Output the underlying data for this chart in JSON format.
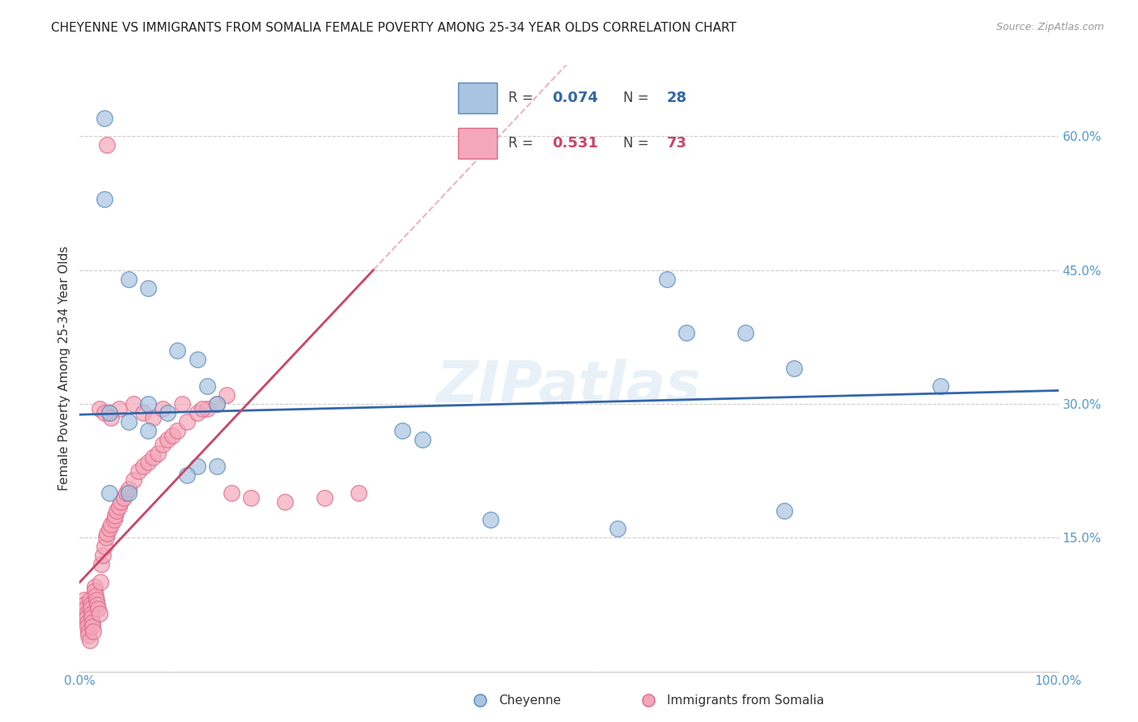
{
  "title": "CHEYENNE VS IMMIGRANTS FROM SOMALIA FEMALE POVERTY AMONG 25-34 YEAR OLDS CORRELATION CHART",
  "source": "Source: ZipAtlas.com",
  "ylabel": "Female Poverty Among 25-34 Year Olds",
  "xlim": [
    0,
    1.0
  ],
  "ylim": [
    0,
    0.68
  ],
  "xticks": [
    0.0,
    0.1,
    0.2,
    0.3,
    0.4,
    0.5,
    0.6,
    0.7,
    0.8,
    0.9,
    1.0
  ],
  "xticklabels": [
    "0.0%",
    "",
    "",
    "",
    "",
    "",
    "",
    "",
    "",
    "",
    "100.0%"
  ],
  "yticks": [
    0.0,
    0.15,
    0.3,
    0.45,
    0.6
  ],
  "yticklabels": [
    "",
    "15.0%",
    "30.0%",
    "45.0%",
    "60.0%"
  ],
  "cheyenne_color": "#a8c4e0",
  "somalia_color": "#f4a7b9",
  "cheyenne_edge": "#5588bb",
  "somalia_edge": "#dd6688",
  "trend_cheyenne_color": "#3366aa",
  "trend_somalia_color": "#cc4466",
  "legend_R_cheyenne": "0.074",
  "legend_N_cheyenne": "28",
  "legend_R_somalia": "0.531",
  "legend_N_somalia": "73",
  "watermark": "ZIPatlas",
  "cheyenne_x": [
    0.025,
    0.025,
    0.05,
    0.07,
    0.1,
    0.12,
    0.13,
    0.14,
    0.33,
    0.6,
    0.68,
    0.73,
    0.88,
    0.03,
    0.05,
    0.07,
    0.09,
    0.12,
    0.03,
    0.05,
    0.07,
    0.11,
    0.14,
    0.62,
    0.72,
    0.35,
    0.42,
    0.55
  ],
  "cheyenne_y": [
    0.62,
    0.53,
    0.44,
    0.43,
    0.36,
    0.35,
    0.32,
    0.3,
    0.27,
    0.44,
    0.38,
    0.34,
    0.32,
    0.29,
    0.28,
    0.27,
    0.29,
    0.23,
    0.2,
    0.2,
    0.3,
    0.22,
    0.23,
    0.38,
    0.18,
    0.26,
    0.17,
    0.16
  ],
  "somalia_x": [
    0.005,
    0.005,
    0.006,
    0.007,
    0.007,
    0.008,
    0.008,
    0.009,
    0.009,
    0.01,
    0.01,
    0.011,
    0.011,
    0.012,
    0.012,
    0.013,
    0.013,
    0.014,
    0.015,
    0.015,
    0.016,
    0.017,
    0.018,
    0.019,
    0.02,
    0.021,
    0.022,
    0.024,
    0.025,
    0.027,
    0.028,
    0.03,
    0.032,
    0.035,
    0.036,
    0.038,
    0.04,
    0.042,
    0.045,
    0.048,
    0.05,
    0.055,
    0.06,
    0.065,
    0.07,
    0.075,
    0.08,
    0.085,
    0.09,
    0.095,
    0.1,
    0.11,
    0.12,
    0.13,
    0.14,
    0.15,
    0.155,
    0.175,
    0.21,
    0.25,
    0.285,
    0.03,
    0.04,
    0.055,
    0.065,
    0.075,
    0.085,
    0.105,
    0.125,
    0.02,
    0.025,
    0.032,
    0.028
  ],
  "somalia_y": [
    0.08,
    0.075,
    0.07,
    0.065,
    0.06,
    0.055,
    0.05,
    0.045,
    0.04,
    0.035,
    0.08,
    0.075,
    0.07,
    0.065,
    0.06,
    0.055,
    0.05,
    0.045,
    0.095,
    0.09,
    0.085,
    0.08,
    0.075,
    0.07,
    0.065,
    0.1,
    0.12,
    0.13,
    0.14,
    0.15,
    0.155,
    0.16,
    0.165,
    0.17,
    0.175,
    0.18,
    0.185,
    0.19,
    0.195,
    0.2,
    0.205,
    0.215,
    0.225,
    0.23,
    0.235,
    0.24,
    0.245,
    0.255,
    0.26,
    0.265,
    0.27,
    0.28,
    0.29,
    0.295,
    0.3,
    0.31,
    0.2,
    0.195,
    0.19,
    0.195,
    0.2,
    0.29,
    0.295,
    0.3,
    0.29,
    0.285,
    0.295,
    0.3,
    0.295,
    0.295,
    0.29,
    0.285,
    0.59
  ],
  "somalia_trend_x": [
    0.0,
    0.3
  ],
  "somalia_trend_y": [
    0.1,
    0.45
  ],
  "cheyenne_trend_x": [
    0.0,
    1.0
  ],
  "cheyenne_trend_y": [
    0.288,
    0.315
  ]
}
